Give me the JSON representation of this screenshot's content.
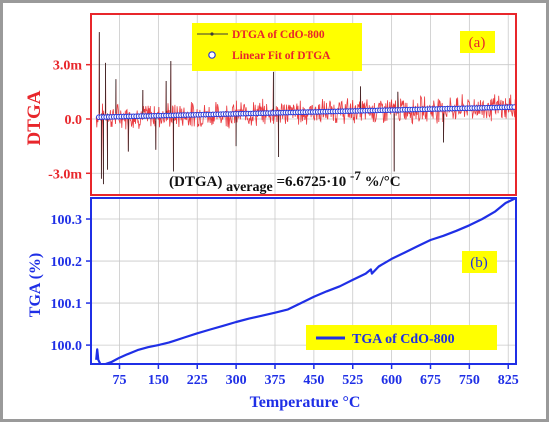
{
  "colors": {
    "frame": "#9a9a9a",
    "upper_axis": "#e8262b",
    "lower_axis": "#1f2fe6",
    "dtga_series": "#e8262b",
    "fit_fill": "#ffffff",
    "fit_stroke": "#2a3bd8",
    "tga_series": "#1f2fe6",
    "label_box": "#ffff00",
    "gridline": "#c9c9c9"
  },
  "chart_data": [
    {
      "type": "line",
      "panel_label": "(a)",
      "ylabel": "DTGA",
      "xlim": [
        20,
        840
      ],
      "ylim": [
        -0.0042,
        0.0058
      ],
      "yticks": [
        {
          "value": 0.003,
          "label": "3.0m"
        },
        {
          "value": 0.0,
          "label": "0.0"
        },
        {
          "value": -0.003,
          "label": "-3.0m"
        }
      ],
      "grid": true,
      "legend": "top-center",
      "series": [
        {
          "name": "DTGA of CdO-800",
          "style": "noisy-line",
          "x_range": [
            30,
            840
          ],
          "baseline_start": 0.0001,
          "baseline_end": 0.00065,
          "noise_amplitude": 0.00075,
          "spikes": [
            {
              "x": 36,
              "y": 0.0048
            },
            {
              "x": 40,
              "y": -0.0033
            },
            {
              "x": 44,
              "y": -0.0036
            },
            {
              "x": 48,
              "y": 0.0031
            },
            {
              "x": 52,
              "y": -0.0028
            },
            {
              "x": 68,
              "y": 0.0022
            },
            {
              "x": 92,
              "y": -0.0018
            },
            {
              "x": 120,
              "y": 0.0016
            },
            {
              "x": 145,
              "y": -0.0017
            },
            {
              "x": 165,
              "y": 0.0021
            },
            {
              "x": 174,
              "y": 0.0032
            },
            {
              "x": 179,
              "y": -0.0029
            },
            {
              "x": 300,
              "y": -0.0015
            },
            {
              "x": 372,
              "y": 0.0026
            },
            {
              "x": 382,
              "y": -0.0021
            },
            {
              "x": 540,
              "y": 0.0018
            },
            {
              "x": 605,
              "y": -0.0029
            },
            {
              "x": 612,
              "y": 0.0015
            },
            {
              "x": 700,
              "y": -0.0013
            }
          ]
        },
        {
          "name": "Linear Fit of DTGA",
          "style": "open-circles",
          "x_range": [
            35,
            840
          ],
          "y_start": 0.0001,
          "y_end": 0.00066
        }
      ],
      "annotation": {
        "text": "(DTGA)",
        "subscript": "average",
        "equation": "=6.6725·10",
        "superscript": "-7",
        "unit": " %/°C"
      }
    },
    {
      "type": "line",
      "panel_label": "(b)",
      "ylabel": "TGA (%)",
      "xlabel": "Temperature °C",
      "xlim": [
        20,
        840
      ],
      "ylim": [
        99.955,
        100.35
      ],
      "xticks": [
        75,
        150,
        225,
        300,
        375,
        450,
        525,
        600,
        675,
        750,
        825
      ],
      "yticks": [
        {
          "value": 100.0,
          "label": "100.0"
        },
        {
          "value": 100.1,
          "label": "100.1"
        },
        {
          "value": 100.2,
          "label": "100.2"
        },
        {
          "value": 100.3,
          "label": "100.3"
        }
      ],
      "grid": true,
      "legend": "bottom-right",
      "series": [
        {
          "name": "TGA of CdO-800",
          "points": [
            [
              30,
              99.965
            ],
            [
              32,
              99.99
            ],
            [
              34,
              99.965
            ],
            [
              36,
              99.96
            ],
            [
              40,
              99.95
            ],
            [
              48,
              99.955
            ],
            [
              60,
              99.96
            ],
            [
              75,
              99.97
            ],
            [
              90,
              99.978
            ],
            [
              110,
              99.988
            ],
            [
              130,
              99.995
            ],
            [
              150,
              100.0
            ],
            [
              170,
              100.006
            ],
            [
              180,
              100.01
            ],
            [
              200,
              100.018
            ],
            [
              225,
              100.028
            ],
            [
              250,
              100.037
            ],
            [
              275,
              100.046
            ],
            [
              300,
              100.055
            ],
            [
              325,
              100.063
            ],
            [
              350,
              100.07
            ],
            [
              375,
              100.077
            ],
            [
              400,
              100.085
            ],
            [
              425,
              100.1
            ],
            [
              450,
              100.115
            ],
            [
              475,
              100.128
            ],
            [
              500,
              100.14
            ],
            [
              525,
              100.155
            ],
            [
              550,
              100.17
            ],
            [
              560,
              100.18
            ],
            [
              562,
              100.17
            ],
            [
              575,
              100.187
            ],
            [
              600,
              100.205
            ],
            [
              625,
              100.22
            ],
            [
              650,
              100.235
            ],
            [
              675,
              100.25
            ],
            [
              700,
              100.26
            ],
            [
              725,
              100.272
            ],
            [
              750,
              100.285
            ],
            [
              775,
              100.3
            ],
            [
              800,
              100.318
            ],
            [
              820,
              100.338
            ],
            [
              840,
              100.35
            ]
          ]
        }
      ]
    }
  ]
}
